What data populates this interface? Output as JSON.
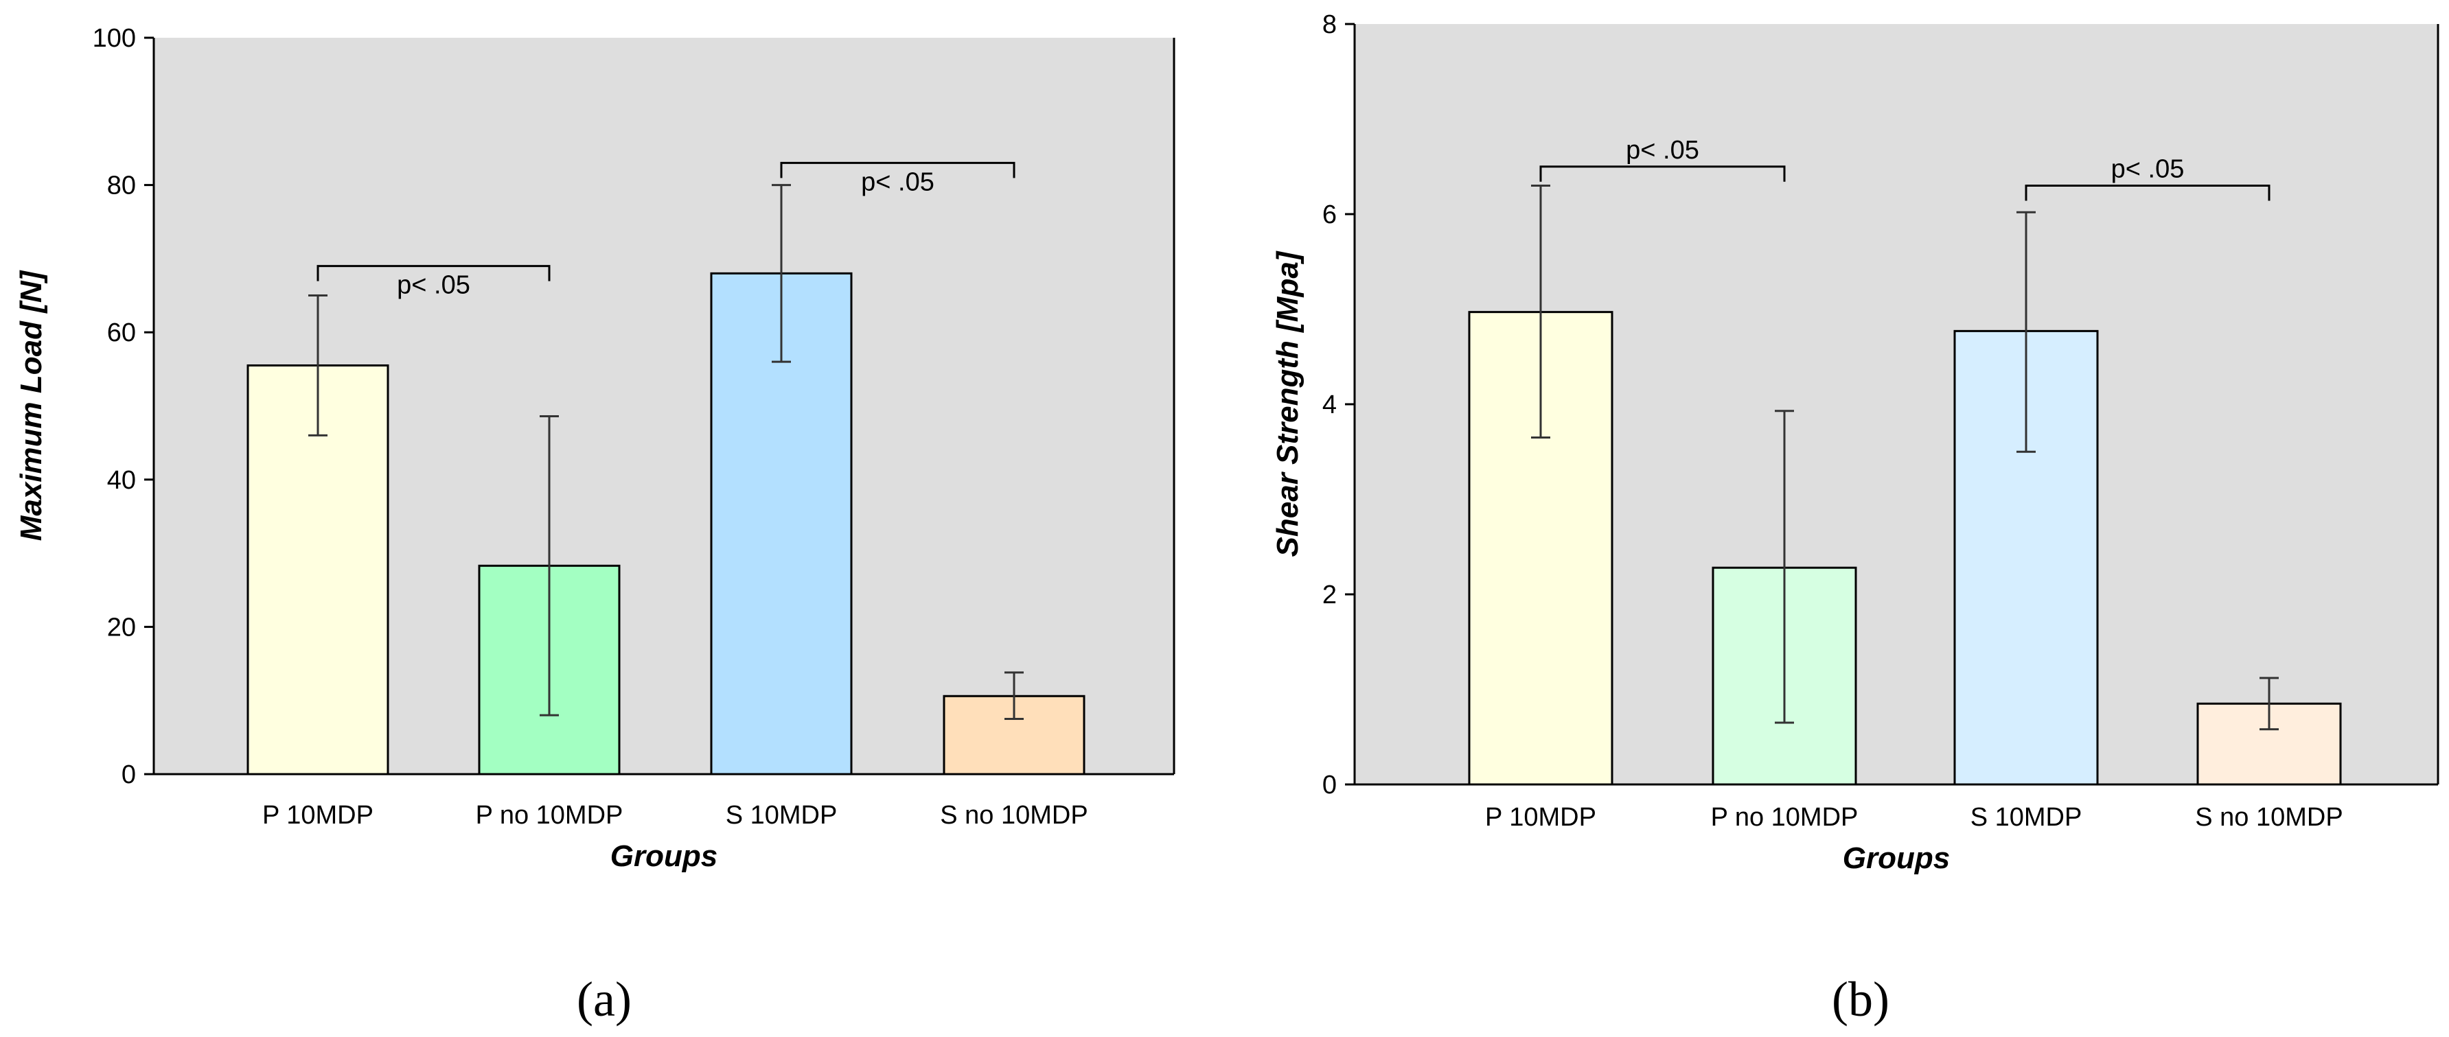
{
  "chart_data": [
    {
      "type": "bar",
      "panel_label": "(a)",
      "categories": [
        "P 10MDP",
        "P no 10MDP",
        "S 10MDP",
        "S no 10MDP"
      ],
      "values": [
        55.5,
        28.3,
        68.0,
        10.6
      ],
      "error_low": [
        46.0,
        8.0,
        56.0,
        7.5
      ],
      "error_high": [
        65.0,
        48.6,
        80.0,
        13.8
      ],
      "colors": [
        "#ffffe0",
        "#a3ffc2",
        "#b3e0ff",
        "#ffdfba"
      ],
      "xlabel": "Groups",
      "ylabel": "Maximum Load [N]",
      "ylim": [
        0,
        100
      ],
      "yticks": [
        0,
        20,
        40,
        60,
        80,
        100
      ],
      "significance": [
        {
          "from": 0,
          "to": 1,
          "y": 69,
          "label": "p< .05",
          "label_position": "below"
        },
        {
          "from": 2,
          "to": 3,
          "y": 83,
          "label": "p< .05",
          "label_position": "below"
        }
      ]
    },
    {
      "type": "bar",
      "panel_label": "(b)",
      "categories": [
        "P 10MDP",
        "P no 10MDP",
        "S 10MDP",
        "S no 10MDP"
      ],
      "values": [
        4.97,
        2.28,
        4.77,
        0.85
      ],
      "error_low": [
        3.65,
        0.65,
        3.5,
        0.58
      ],
      "error_high": [
        6.3,
        3.93,
        6.02,
        1.12
      ],
      "colors": [
        "#ffffe0",
        "#d6ffe2",
        "#d6eeff",
        "#ffeedd"
      ],
      "xlabel": "Groups",
      "ylabel": "Shear Strength [Mpa]",
      "ylim": [
        0,
        8
      ],
      "yticks": [
        0,
        2,
        4,
        6,
        8
      ],
      "significance": [
        {
          "from": 0,
          "to": 1,
          "y": 6.5,
          "label": "p< .05",
          "label_position": "above"
        },
        {
          "from": 2,
          "to": 3,
          "y": 6.3,
          "label": "p< .05",
          "label_position": "above"
        }
      ]
    }
  ]
}
